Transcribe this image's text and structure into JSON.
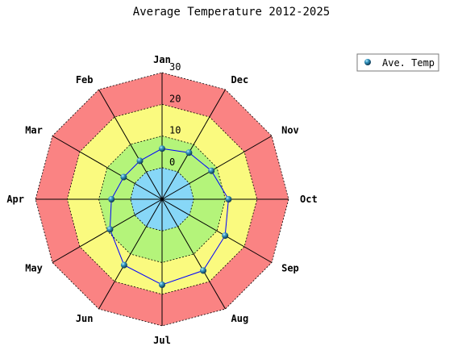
{
  "chart_data": {
    "type": "radar",
    "title": "Average Temperature 2012-2025",
    "categories": [
      "Jan",
      "Dec",
      "Nov",
      "Oct",
      "Sep",
      "Aug",
      "Jul",
      "Jun",
      "May",
      "Apr",
      "Mar",
      "Feb"
    ],
    "direction": "clockwise",
    "rlim": [
      -10,
      30
    ],
    "radial_ticks": [
      0,
      10,
      20,
      30
    ],
    "bands": [
      {
        "from": -10,
        "to": 0,
        "color": "#87d7f7"
      },
      {
        "from": 0,
        "to": 10,
        "color": "#b4f47a"
      },
      {
        "from": 10,
        "to": 20,
        "color": "#fafa7f"
      },
      {
        "from": 20,
        "to": 30,
        "color": "#fa8383"
      }
    ],
    "series": [
      {
        "name": "Ave. Temp",
        "color": "#0000ff",
        "marker": "sphere",
        "values": [
          6,
          7,
          8,
          11,
          13,
          16,
          17,
          14,
          9,
          6,
          4,
          4
        ]
      }
    ],
    "legend_position": "top-right",
    "grid": true
  }
}
